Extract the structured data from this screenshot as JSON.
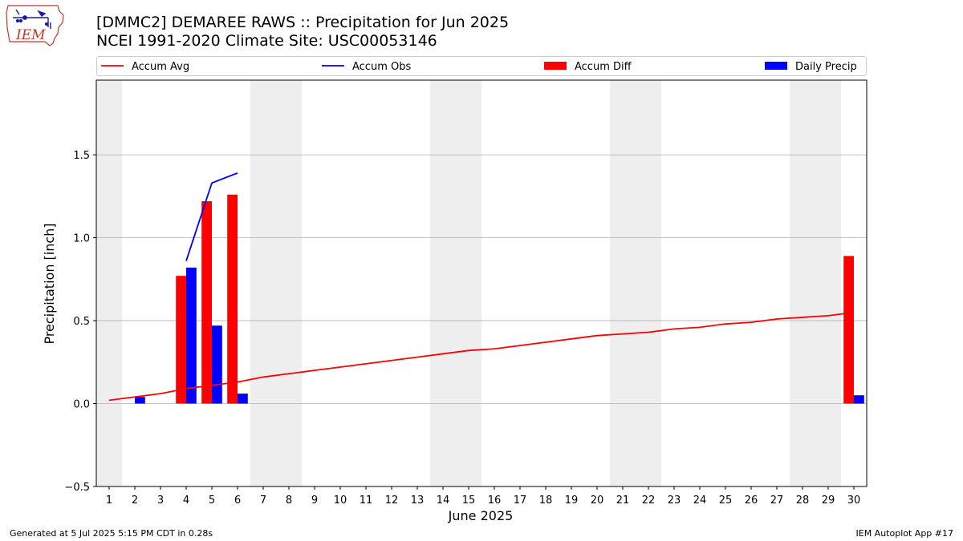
{
  "header": {
    "logo_text": "IEM",
    "title": "[DMMC2] DEMAREE RAWS :: Precipitation for Jun 2025",
    "subtitle": "NCEI 1991-2020 Climate Site: USC00053146"
  },
  "footer": {
    "generated": "Generated at 5 Jul 2025 5:15 PM CDT in 0.28s",
    "app": "IEM Autoplot App #17"
  },
  "colors": {
    "accum_avg": "#ff0000",
    "accum_obs": "#0000ff",
    "accum_diff": "#ff0000",
    "daily_precip": "#0000ff",
    "weekend_shade": "#eeeeee",
    "grid": "#b0b0b0"
  },
  "chart_data": {
    "type": "bar",
    "xlabel": "June 2025",
    "ylabel": "Precipitation [inch]",
    "ylim": [
      -0.5,
      1.95
    ],
    "yticks": [
      -0.5,
      0.0,
      0.5,
      1.0,
      1.5
    ],
    "ytick_labels": [
      "−0.5",
      "0.0",
      "0.5",
      "1.0",
      "1.5"
    ],
    "grid": "horizontal",
    "legend_placement": "top",
    "days": [
      1,
      2,
      3,
      4,
      5,
      6,
      7,
      8,
      9,
      10,
      11,
      12,
      13,
      14,
      15,
      16,
      17,
      18,
      19,
      20,
      21,
      22,
      23,
      24,
      25,
      26,
      27,
      28,
      29,
      30
    ],
    "weekend_days": [
      1,
      7,
      8,
      14,
      15,
      21,
      22,
      28,
      29
    ],
    "legend": [
      "Accum Avg",
      "Accum Obs",
      "Accum Diff",
      "Daily Precip"
    ],
    "series": [
      {
        "name": "Accum Avg",
        "kind": "line",
        "x": [
          1,
          2,
          3,
          4,
          5,
          6,
          7,
          8,
          9,
          10,
          11,
          12,
          13,
          14,
          15,
          16,
          17,
          18,
          19,
          20,
          21,
          22,
          23,
          24,
          25,
          26,
          27,
          28,
          29,
          30
        ],
        "values": [
          0.02,
          0.04,
          0.06,
          0.09,
          0.11,
          0.13,
          0.16,
          0.18,
          0.2,
          0.22,
          0.24,
          0.26,
          0.28,
          0.3,
          0.32,
          0.33,
          0.35,
          0.37,
          0.39,
          0.41,
          0.42,
          0.43,
          0.45,
          0.46,
          0.48,
          0.49,
          0.51,
          0.52,
          0.53,
          0.55
        ]
      },
      {
        "name": "Accum Obs",
        "kind": "line",
        "x": [
          4,
          5,
          6
        ],
        "values": [
          0.86,
          1.33,
          1.39
        ]
      },
      {
        "name": "Accum Diff",
        "kind": "bar",
        "x": [
          4,
          5,
          6,
          30
        ],
        "values": [
          0.77,
          1.22,
          1.26,
          0.89
        ]
      },
      {
        "name": "Daily Precip",
        "kind": "bar",
        "x": [
          2,
          4,
          5,
          6,
          30
        ],
        "values": [
          0.04,
          0.82,
          0.47,
          0.06,
          0.05
        ]
      }
    ]
  }
}
